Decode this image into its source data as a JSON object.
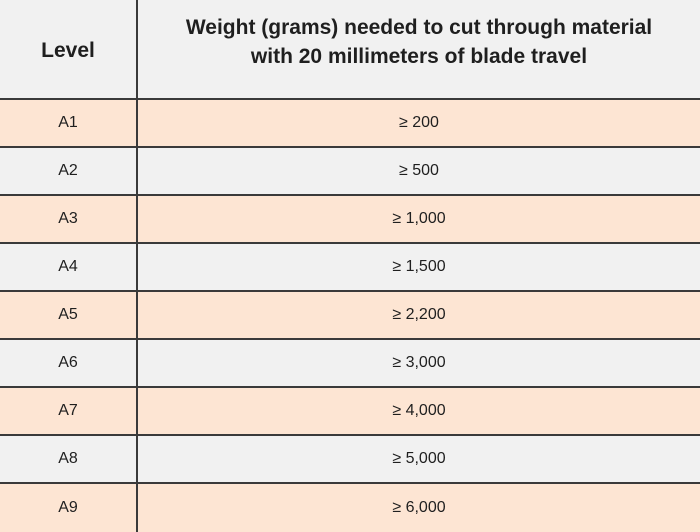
{
  "header": {
    "level": "Level",
    "weight_line1": "Weight (grams) needed to cut through material",
    "weight_line2": "with 20 millimeters of blade travel"
  },
  "rows": [
    {
      "level": "A1",
      "weight": "≥ 200"
    },
    {
      "level": "A2",
      "weight": "≥ 500"
    },
    {
      "level": "A3",
      "weight": "≥ 1,000"
    },
    {
      "level": "A4",
      "weight": "≥ 1,500"
    },
    {
      "level": "A5",
      "weight": "≥ 2,200"
    },
    {
      "level": "A6",
      "weight": "≥ 3,000"
    },
    {
      "level": "A7",
      "weight": "≥ 4,000"
    },
    {
      "level": "A8",
      "weight": "≥ 5,000"
    },
    {
      "level": "A9",
      "weight": "≥ 6,000"
    }
  ],
  "colors": {
    "odd_row": "#fde5d3",
    "even_row": "#f1f1f1",
    "border": "#3a3a3a"
  }
}
